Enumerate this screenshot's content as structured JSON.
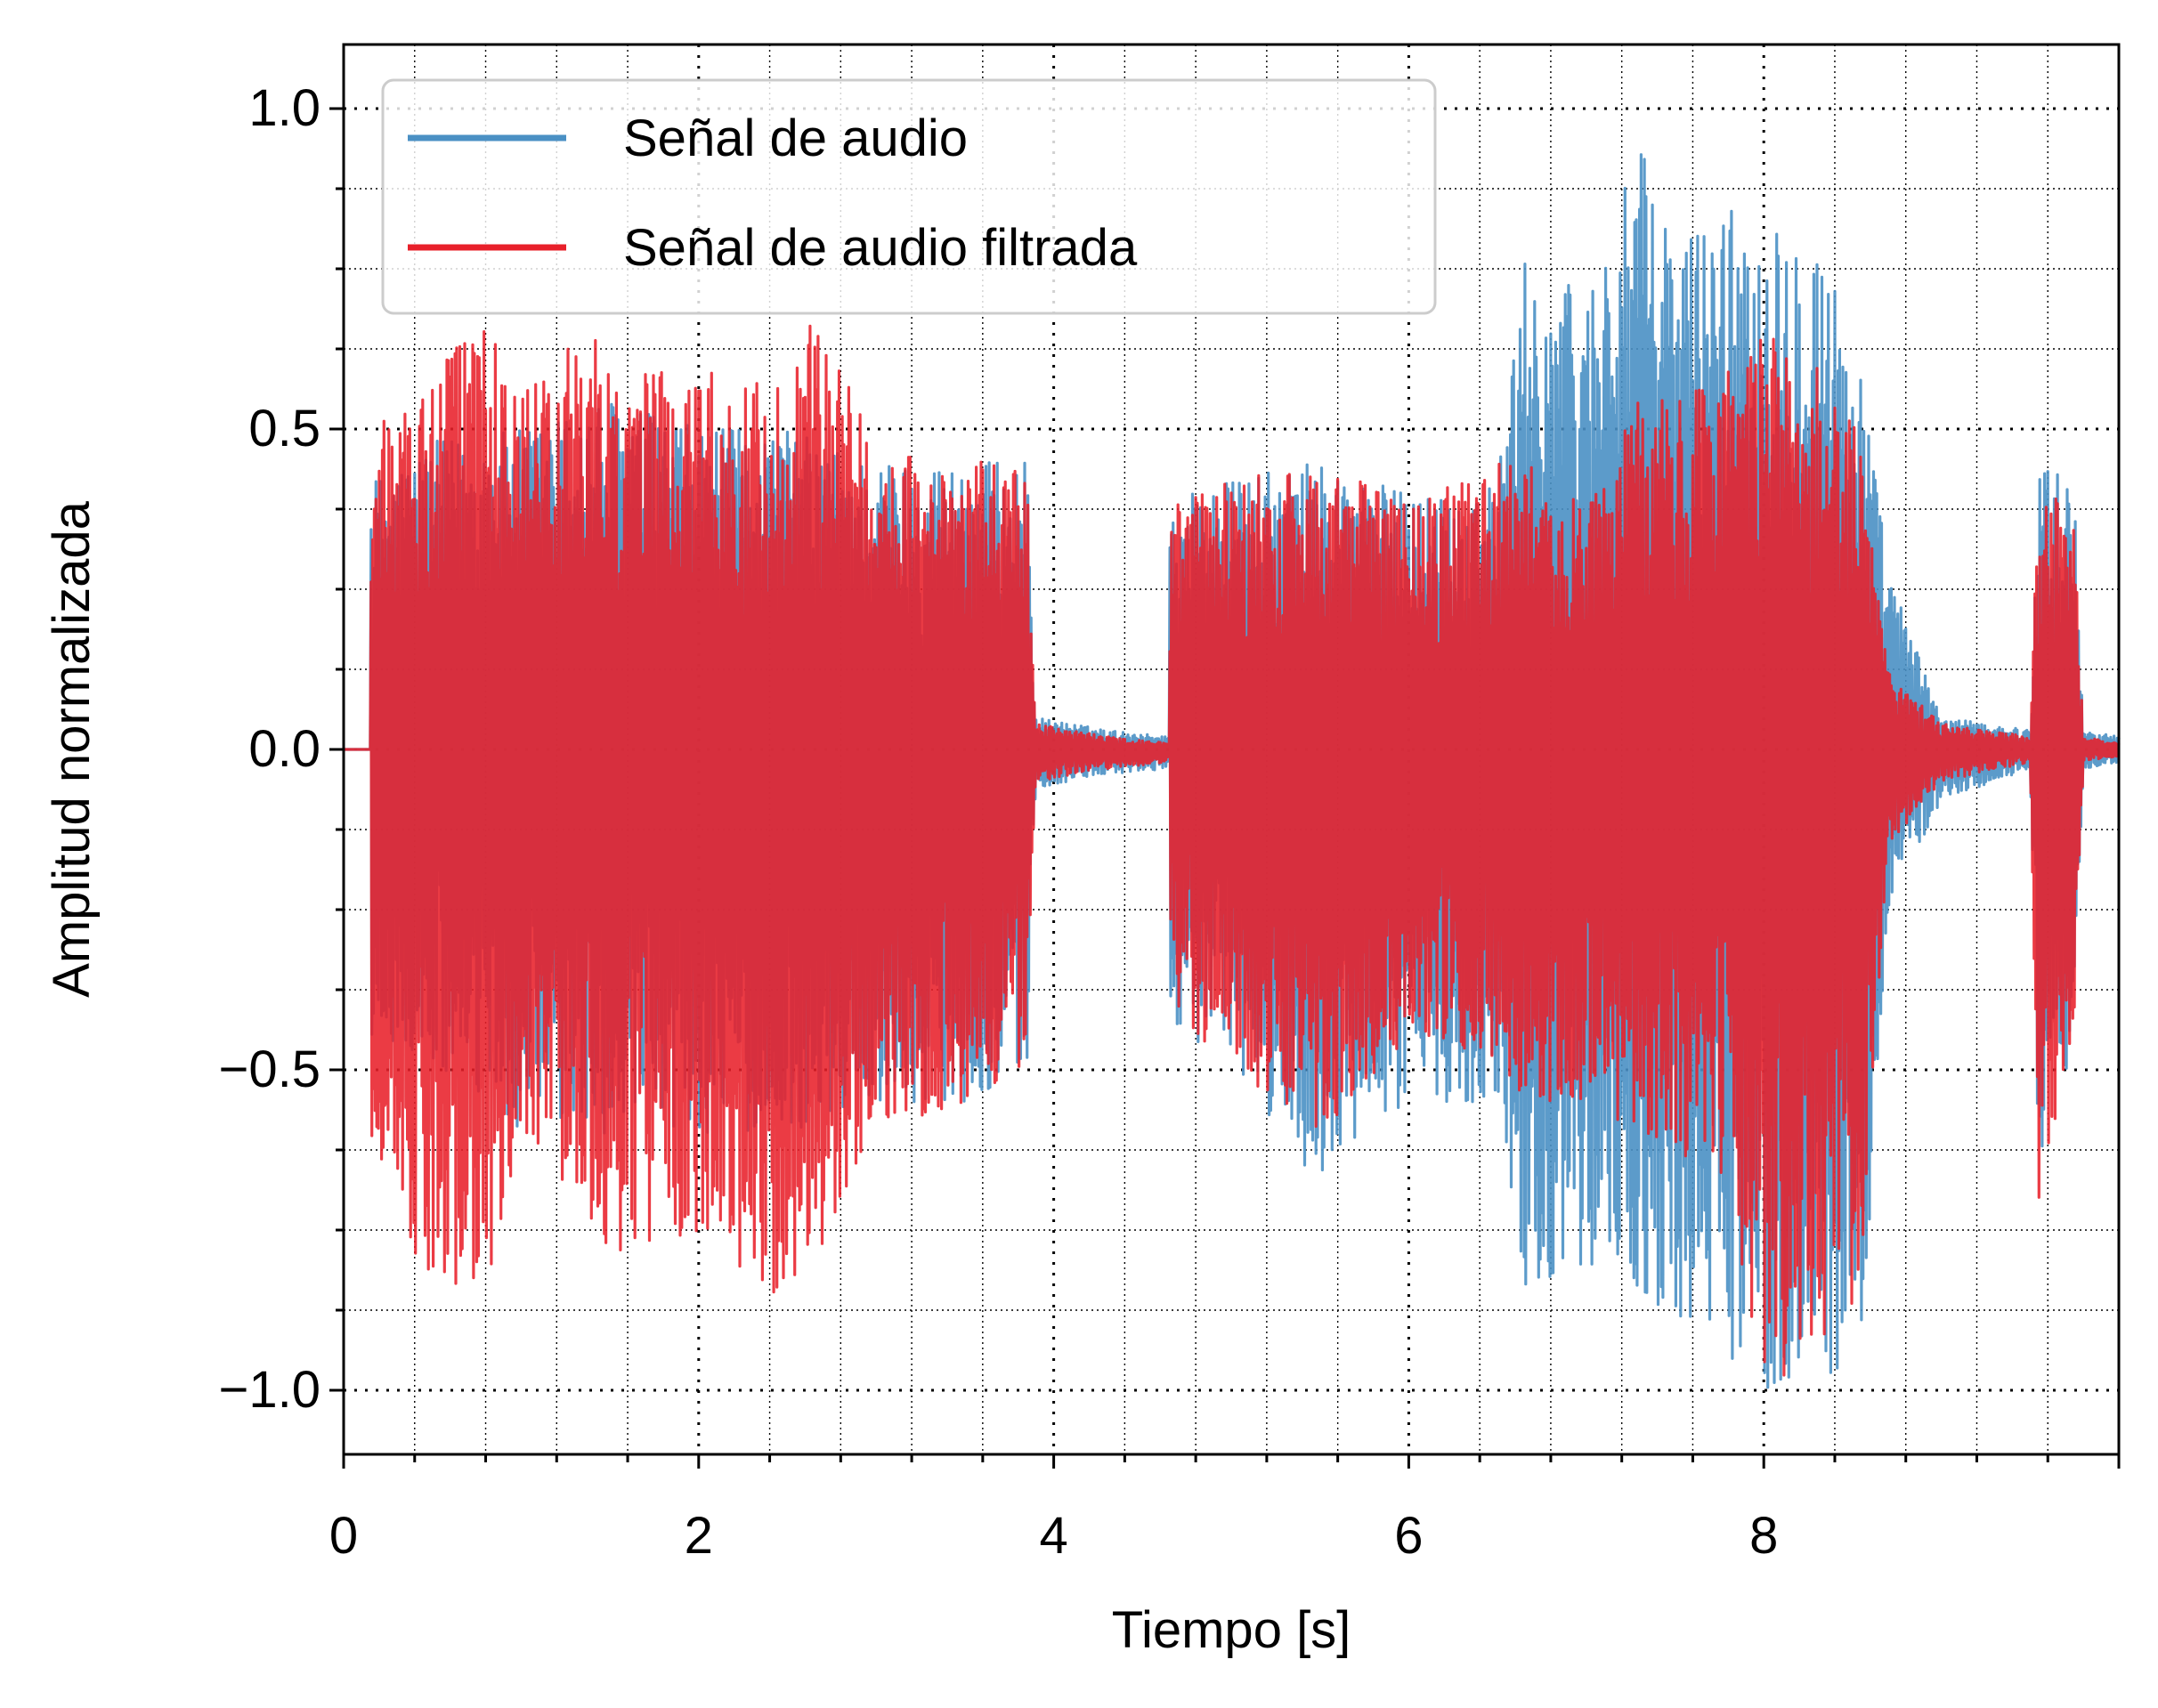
{
  "chart_data": {
    "type": "line",
    "xlabel": "Tiempo [s]",
    "ylabel": "Amplitud normalizada",
    "xlim": [
      0,
      10
    ],
    "ylim": [
      -1.1,
      1.1
    ],
    "x_ticks": [
      "0",
      "2",
      "4",
      "6",
      "8"
    ],
    "y_ticks": [
      "1.0",
      "0.5",
      "0.0",
      "−0.5",
      "−1.0"
    ],
    "grid": true,
    "legend_position": "upper-left",
    "colors": {
      "original": "#4a90c4",
      "filtered": "#e8202a"
    },
    "series": [
      {
        "name": "Señal de audio",
        "color": "#4a90c4",
        "envelope": {
          "x": [
            0.0,
            0.15,
            0.15,
            0.5,
            1.0,
            1.5,
            2.0,
            2.5,
            3.0,
            3.5,
            3.85,
            3.9,
            4.3,
            4.65,
            4.65,
            5.0,
            5.5,
            6.0,
            6.5,
            6.65,
            7.0,
            7.3,
            7.5,
            7.8,
            8.0,
            8.3,
            8.55,
            8.7,
            9.0,
            9.5,
            9.55,
            9.75,
            9.8,
            10.0
          ],
          "max": [
            0.0,
            0.0,
            0.42,
            0.48,
            0.5,
            0.55,
            0.5,
            0.5,
            0.45,
            0.45,
            0.45,
            0.05,
            0.03,
            0.02,
            0.4,
            0.42,
            0.45,
            0.4,
            0.42,
            0.76,
            0.72,
            0.94,
            0.8,
            0.85,
            0.84,
            0.82,
            0.6,
            0.28,
            0.05,
            0.03,
            0.47,
            0.4,
            0.03,
            0.02
          ],
          "min": [
            0.0,
            0.0,
            -0.45,
            -0.5,
            -0.6,
            -0.6,
            -0.6,
            -0.6,
            -0.55,
            -0.55,
            -0.5,
            -0.06,
            -0.04,
            -0.03,
            -0.42,
            -0.5,
            -0.68,
            -0.55,
            -0.55,
            -0.84,
            -0.8,
            -0.85,
            -0.9,
            -0.95,
            -1.0,
            -1.0,
            -0.95,
            -0.25,
            -0.08,
            -0.03,
            -0.72,
            -0.45,
            -0.03,
            -0.02
          ]
        }
      },
      {
        "name": "Señal de audio filtrada",
        "color": "#e8202a",
        "envelope": {
          "x": [
            0.0,
            0.15,
            0.15,
            0.5,
            0.85,
            1.0,
            1.4,
            1.5,
            2.0,
            2.5,
            2.6,
            3.0,
            3.5,
            3.85,
            3.9,
            4.3,
            4.65,
            4.65,
            5.0,
            5.5,
            6.0,
            6.5,
            6.65,
            7.0,
            7.3,
            7.5,
            7.8,
            8.0,
            8.3,
            8.55,
            8.7,
            9.0,
            9.5,
            9.55,
            9.75,
            9.8,
            10.0
          ],
          "max": [
            0.0,
            0.0,
            0.5,
            0.6,
            0.67,
            0.55,
            0.67,
            0.6,
            0.6,
            0.58,
            0.68,
            0.5,
            0.45,
            0.45,
            0.04,
            0.02,
            0.01,
            0.38,
            0.42,
            0.45,
            0.38,
            0.45,
            0.45,
            0.38,
            0.55,
            0.55,
            0.6,
            0.65,
            0.6,
            0.5,
            0.12,
            0.04,
            0.02,
            0.44,
            0.35,
            0.02,
            0.01
          ],
          "min": [
            0.0,
            0.0,
            -0.6,
            -0.88,
            -0.8,
            -0.6,
            -0.75,
            -0.8,
            -0.75,
            -0.88,
            -0.85,
            -0.6,
            -0.55,
            -0.5,
            -0.05,
            -0.03,
            -0.02,
            -0.4,
            -0.5,
            -0.6,
            -0.45,
            -0.5,
            -0.55,
            -0.55,
            -0.6,
            -0.65,
            -0.7,
            -1.0,
            -0.95,
            -0.85,
            -0.15,
            -0.05,
            -0.02,
            -0.7,
            -0.45,
            -0.02,
            -0.01
          ]
        }
      }
    ]
  }
}
